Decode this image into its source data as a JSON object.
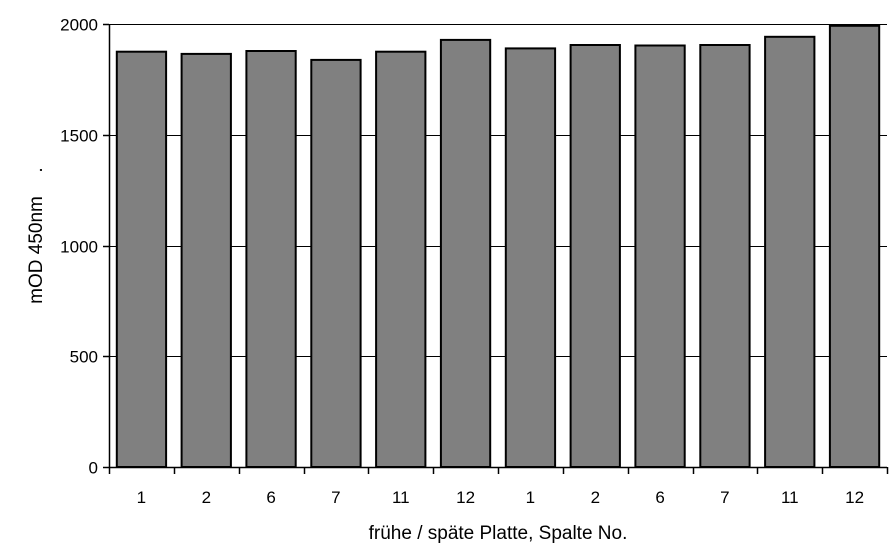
{
  "chart_data": {
    "type": "bar",
    "categories": [
      "1",
      "2",
      "6",
      "7",
      "11",
      "12",
      "1",
      "2",
      "6",
      "7",
      "11",
      "12"
    ],
    "values": [
      1875,
      1865,
      1878,
      1838,
      1875,
      1928,
      1890,
      1905,
      1903,
      1905,
      1942,
      1992
    ],
    "title": "",
    "xlabel": "frühe / späte Platte, Spalte No.",
    "ylabel": "mOD 450nm",
    "ylabel_suffix": ".",
    "ylim": [
      0,
      2000
    ],
    "yticks": [
      0,
      500,
      1000,
      1500,
      2000
    ],
    "grid": true,
    "colors": {
      "bar_fill": "#808080",
      "bar_stroke": "#000000",
      "grid": "#000000",
      "axis": "#000000"
    }
  }
}
